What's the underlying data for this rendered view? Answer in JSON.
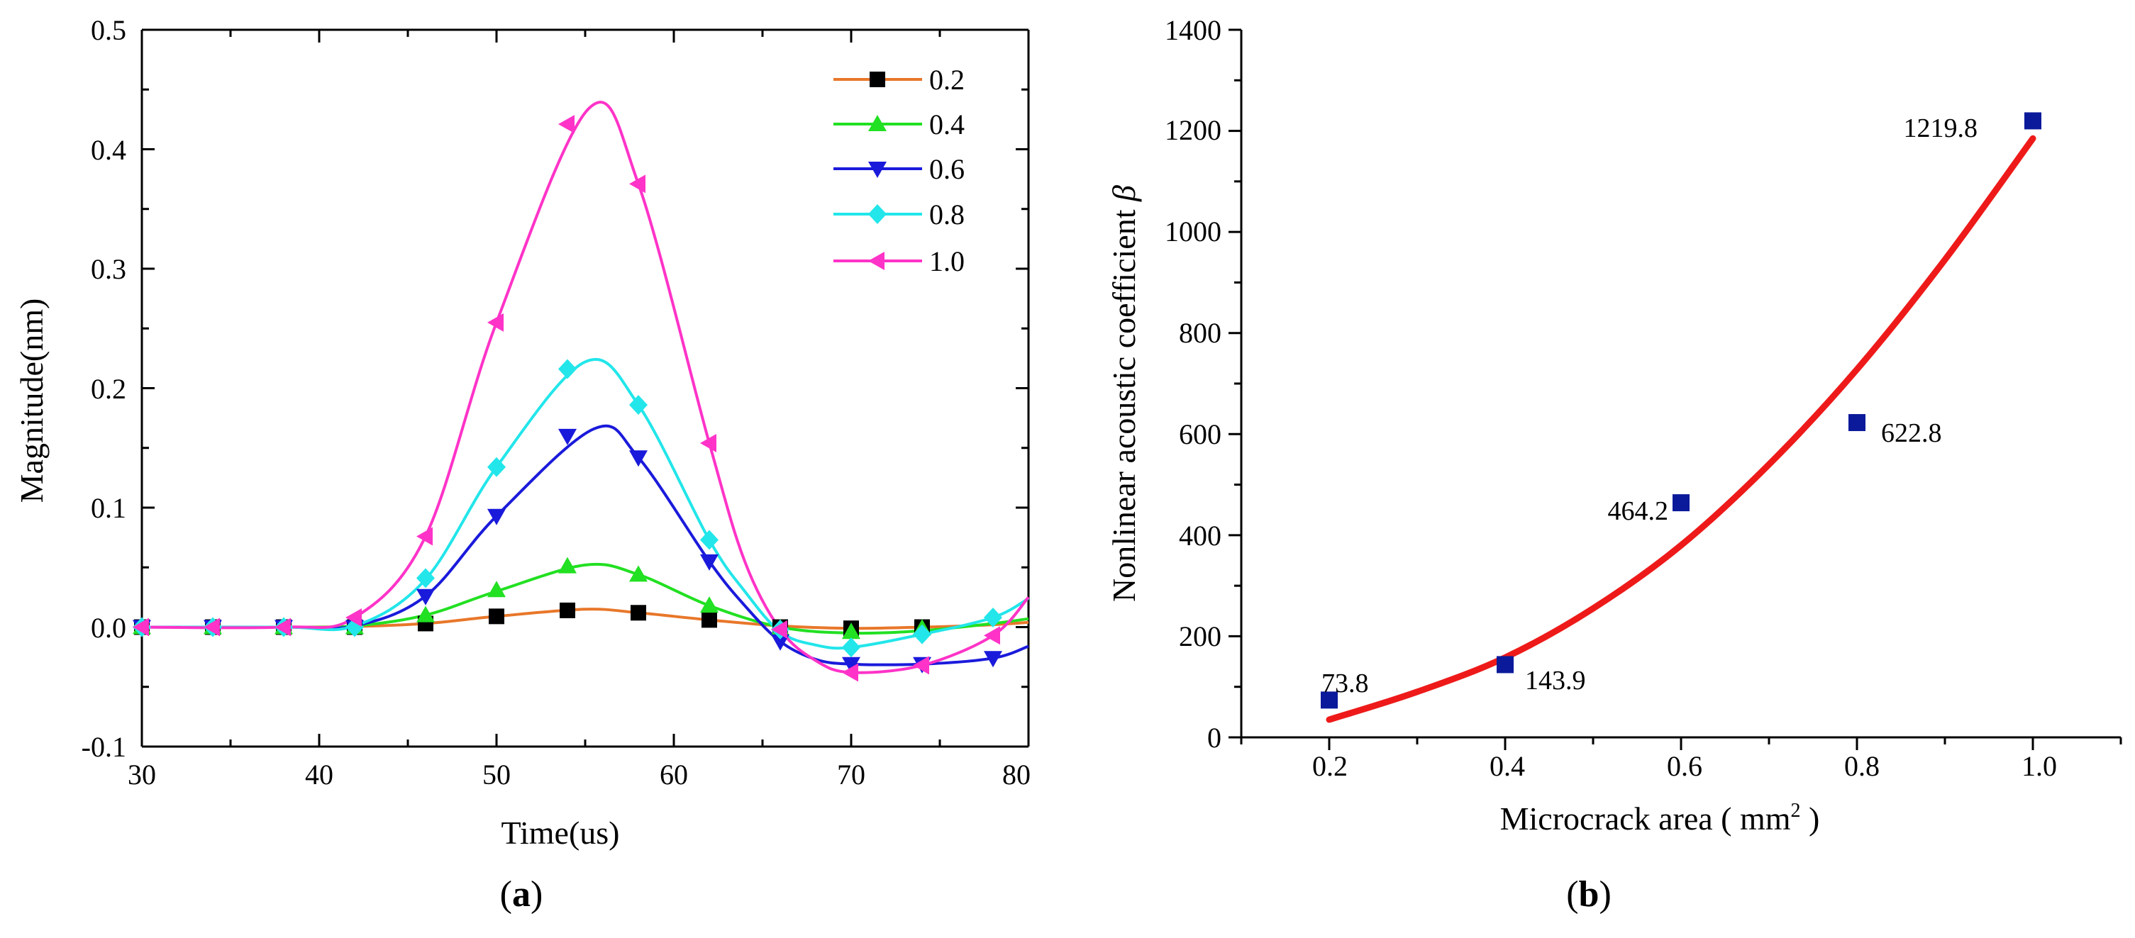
{
  "colors": {
    "s0_2": "#e8772a",
    "s0_4": "#22e022",
    "s0_6": "#1a1adb",
    "s0_8": "#22e6ea",
    "s1_0": "#ff33c8",
    "fit": "#ee1a1a",
    "points_b": "#0a1a9a"
  },
  "chart_data": [
    {
      "id": "a",
      "type": "line",
      "panel_label": {
        "open": "(",
        "letter": "a",
        "close": ")"
      },
      "xlabel": "Time(us)",
      "ylabel": "Magnitude(nm)",
      "xlim": [
        30,
        80
      ],
      "ylim": [
        -0.1,
        0.5
      ],
      "xticks": [
        30,
        40,
        50,
        60,
        70,
        80
      ],
      "xtick_labels": [
        "30",
        "40",
        "50",
        "60",
        "70",
        "80"
      ],
      "yticks": [
        -0.1,
        0.0,
        0.1,
        0.2,
        0.3,
        0.4,
        0.5
      ],
      "ytick_labels": [
        "-0.1",
        "0.0",
        "0.1",
        "0.2",
        "0.3",
        "0.4",
        "0.5"
      ],
      "legend_position": "top-right",
      "series": [
        {
          "name": "0.2",
          "color_key": "s0_2",
          "marker": "square",
          "curve_x": [
            30,
            38,
            42,
            46,
            50,
            55,
            58,
            62,
            66,
            70,
            74,
            78,
            80
          ],
          "curve_y": [
            0,
            0,
            0.0005,
            0.003,
            0.009,
            0.015,
            0.012,
            0.006,
            0.001,
            -0.001,
            0,
            0.002,
            0.004
          ],
          "points_x": [
            30,
            34,
            38,
            42,
            46,
            50,
            54,
            58,
            62,
            66,
            70,
            74
          ],
          "points_y": [
            0,
            0,
            0,
            0,
            0.003,
            0.009,
            0.014,
            0.012,
            0.006,
            0.0,
            -0.001,
            0.0
          ]
        },
        {
          "name": "0.4",
          "color_key": "s0_4",
          "marker": "triangle-up",
          "curve_x": [
            30,
            38,
            42,
            46,
            50,
            55,
            58,
            62,
            66,
            70,
            74,
            78,
            80
          ],
          "curve_y": [
            0,
            0,
            0.001,
            0.01,
            0.03,
            0.052,
            0.044,
            0.018,
            0.0,
            -0.005,
            -0.003,
            0.003,
            0.007
          ],
          "points_x": [
            30,
            34,
            38,
            42,
            46,
            50,
            54,
            58,
            62,
            66,
            70,
            74
          ],
          "points_y": [
            0,
            0,
            0,
            0,
            0.01,
            0.031,
            0.051,
            0.044,
            0.018,
            -0.001,
            -0.004,
            -0.001
          ]
        },
        {
          "name": "0.6",
          "color_key": "s0_6",
          "marker": "triangle-down",
          "curve_x": [
            30,
            38,
            42,
            46,
            50,
            55.5,
            58,
            62,
            64,
            66,
            68,
            70,
            74,
            78,
            80
          ],
          "curve_y": [
            0,
            0,
            0.001,
            0.026,
            0.093,
            0.166,
            0.142,
            0.055,
            0.018,
            -0.012,
            -0.027,
            -0.031,
            -0.031,
            -0.026,
            -0.016
          ],
          "points_x": [
            30,
            34,
            38,
            42,
            46,
            50,
            54,
            58,
            62,
            66,
            70,
            74,
            78
          ],
          "points_y": [
            0,
            0,
            0,
            0,
            0.026,
            0.093,
            0.16,
            0.142,
            0.055,
            -0.012,
            -0.031,
            -0.031,
            -0.026
          ]
        },
        {
          "name": "0.8",
          "color_key": "s0_8",
          "marker": "diamond",
          "curve_x": [
            30,
            38,
            42,
            46,
            50,
            55,
            58,
            62,
            64,
            66,
            68,
            70,
            74,
            78,
            80
          ],
          "curve_y": [
            0,
            0,
            0.001,
            0.04,
            0.134,
            0.222,
            0.186,
            0.073,
            0.03,
            -0.004,
            -0.015,
            -0.017,
            -0.006,
            0.008,
            0.024
          ],
          "points_x": [
            30,
            34,
            38,
            42,
            46,
            50,
            54,
            58,
            62,
            66,
            70,
            74,
            78
          ],
          "points_y": [
            0,
            0,
            0,
            0,
            0.041,
            0.134,
            0.216,
            0.186,
            0.073,
            -0.002,
            -0.017,
            -0.006,
            0.008
          ]
        },
        {
          "name": "1.0",
          "color_key": "s1_0",
          "marker": "triangle-left",
          "curve_x": [
            30,
            38,
            42,
            46,
            50,
            55.2,
            58,
            62,
            64,
            66,
            68,
            70,
            74,
            78,
            80
          ],
          "curve_y": [
            0,
            0,
            0.008,
            0.076,
            0.255,
            0.434,
            0.371,
            0.154,
            0.055,
            -0.002,
            -0.028,
            -0.038,
            -0.032,
            -0.007,
            0.025
          ],
          "points_x": [
            30,
            34,
            38,
            42,
            46,
            50,
            54,
            58,
            62,
            66,
            70,
            74,
            78
          ],
          "points_y": [
            0,
            0,
            0,
            0.008,
            0.076,
            0.255,
            0.421,
            0.371,
            0.154,
            -0.002,
            -0.038,
            -0.032,
            -0.007
          ]
        }
      ]
    },
    {
      "id": "b",
      "type": "scatter",
      "panel_label": {
        "open": "(",
        "letter": "b",
        "close": ")"
      },
      "xlabel": "Microcrack area ( mm",
      "xlabel_sup": "2",
      "xlabel_end": " )",
      "ylabel": "Nonlinear acoustic coefficient ",
      "ylabel_symbol": "β",
      "xlim": [
        0.1,
        1.1
      ],
      "ylim": [
        0,
        1400
      ],
      "xticks": [
        0.2,
        0.4,
        0.6,
        0.8,
        1.0
      ],
      "xtick_labels": [
        "0.2",
        "0.4",
        "0.6",
        "0.8",
        "1.0"
      ],
      "yticks": [
        0,
        200,
        400,
        600,
        800,
        1000,
        1200,
        1400
      ],
      "ytick_labels": [
        "0",
        "200",
        "400",
        "600",
        "800",
        "1000",
        "1200",
        "1400"
      ],
      "x": [
        0.2,
        0.4,
        0.6,
        0.8,
        1.0
      ],
      "y": [
        73.8,
        143.9,
        464.2,
        622.8,
        1219.8
      ],
      "data_labels": [
        "73.8",
        "143.9",
        "464.2",
        "622.8",
        "1219.8"
      ],
      "data_label_side": [
        "right-above",
        "right-below",
        "left",
        "right-below",
        "left-below"
      ],
      "fit": {
        "type": "quadratic",
        "x": [
          0.2,
          0.3,
          0.4,
          0.5,
          0.6,
          0.7,
          0.8,
          0.9,
          1.0
        ],
        "y": [
          35,
          90,
          158,
          255,
          380,
          540,
          728,
          945,
          1185
        ]
      }
    }
  ]
}
